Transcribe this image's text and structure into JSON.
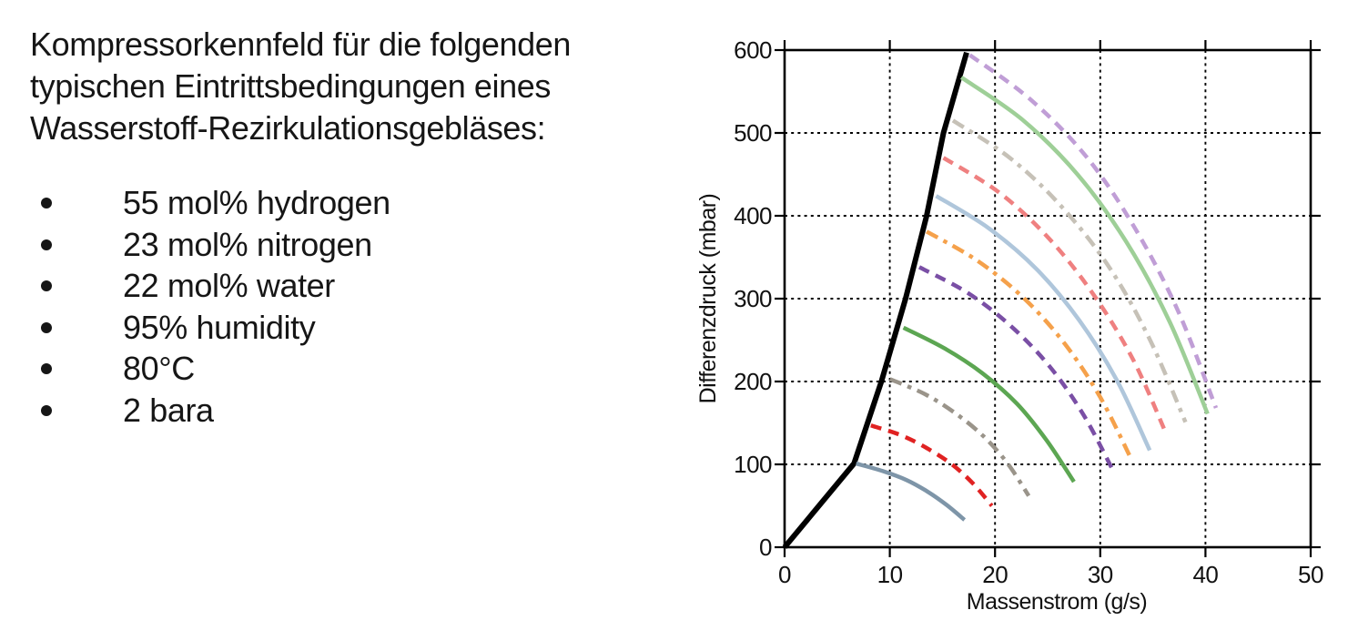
{
  "panel_text": {
    "heading_lines": [
      "Kompressorkennfeld für die folgenden",
      "typischen Eintrittsbedingungen eines",
      "Wasserstoff-Rezirkulationsgebläses:"
    ],
    "bullets": [
      "55 mol% hydrogen",
      "23 mol% nitrogen",
      "22 mol% water",
      "95% humidity",
      "80°C",
      "2 bara"
    ]
  },
  "chart_data": {
    "type": "line",
    "title": "",
    "xlabel": "Massenstrom (g/s)",
    "ylabel": "Differenzdruck (mbar)",
    "xlim": [
      0,
      50
    ],
    "ylim": [
      0,
      600
    ],
    "x_ticks": [
      0,
      10,
      20,
      30,
      40,
      50
    ],
    "y_ticks": [
      0,
      100,
      200,
      300,
      400,
      500,
      600
    ],
    "grid": "black dotted, vertical at 10-40, horizontal at 100-500",
    "legend": "none",
    "series": [
      {
        "name": "surge-limit-line",
        "color": "#000000",
        "style": "solid",
        "width": 6,
        "smooth": false,
        "points": [
          [
            0,
            0
          ],
          [
            6.6,
            101
          ],
          [
            9.2,
            200
          ],
          [
            11.5,
            300
          ],
          [
            13.5,
            400
          ],
          [
            15.1,
            500
          ],
          [
            17.3,
            597
          ]
        ]
      },
      {
        "name": "speedline-1-steelblue-solid",
        "color": "#7e95a8",
        "style": "solid",
        "width": 4.5,
        "points": [
          [
            6.8,
            101
          ],
          [
            9.3,
            92
          ],
          [
            11.6,
            81
          ],
          [
            13.6,
            67
          ],
          [
            15.4,
            51
          ],
          [
            17.1,
            33
          ]
        ]
      },
      {
        "name": "speedline-2-red-dashed",
        "color": "#e02222",
        "style": "dashed",
        "width": 4.5,
        "points": [
          [
            8.2,
            147
          ],
          [
            11.1,
            135
          ],
          [
            13.6,
            119
          ],
          [
            15.9,
            100
          ],
          [
            17.9,
            77
          ],
          [
            19.7,
            50
          ]
        ]
      },
      {
        "name": "speedline-3-gray-dashdot",
        "color": "#9a948a",
        "style": "dashdot",
        "width": 4.5,
        "points": [
          [
            10,
            203
          ],
          [
            13.3,
            185
          ],
          [
            16.2,
            162
          ],
          [
            18.9,
            134
          ],
          [
            21.2,
            101
          ],
          [
            23.2,
            62
          ]
        ]
      },
      {
        "name": "speedline-4-green-solid",
        "color": "#5ca652",
        "style": "solid",
        "width": 4.5,
        "points": [
          [
            11.3,
            265
          ],
          [
            15.2,
            240
          ],
          [
            18.8,
            210
          ],
          [
            22.1,
            173
          ],
          [
            24.9,
            129
          ],
          [
            27.5,
            79
          ]
        ]
      },
      {
        "name": "speedline-5-purple-dashed",
        "color": "#7a4fa5",
        "style": "dashed",
        "width": 4.5,
        "points": [
          [
            12.8,
            338
          ],
          [
            17.4,
            307
          ],
          [
            21.5,
            267
          ],
          [
            25.2,
            218
          ],
          [
            28.4,
            160
          ],
          [
            31.2,
            93
          ]
        ]
      },
      {
        "name": "speedline-6-orange-dashdot",
        "color": "#f5a14b",
        "style": "dashdot",
        "width": 4.5,
        "points": [
          [
            13.5,
            381
          ],
          [
            18.3,
            346
          ],
          [
            22.7,
            301
          ],
          [
            26.6,
            246
          ],
          [
            30,
            181
          ],
          [
            33,
            105
          ]
        ]
      },
      {
        "name": "speedline-7-lightblue-solid",
        "color": "#afc6db",
        "style": "solid",
        "width": 4.5,
        "points": [
          [
            14.4,
            424
          ],
          [
            19.4,
            385
          ],
          [
            24,
            335
          ],
          [
            28,
            274
          ],
          [
            31.6,
            201
          ],
          [
            34.7,
            117
          ]
        ]
      },
      {
        "name": "speedline-8-salmon-dashed",
        "color": "#ef8080",
        "style": "dashed",
        "width": 4.5,
        "points": [
          [
            15.1,
            470
          ],
          [
            20.4,
            428
          ],
          [
            25.1,
            373
          ],
          [
            29.3,
            306
          ],
          [
            33.1,
            227
          ],
          [
            36.3,
            136
          ]
        ]
      },
      {
        "name": "speedline-9-lightgray-dashdot",
        "color": "#c6c1b7",
        "style": "dashdot",
        "width": 4.5,
        "points": [
          [
            16,
            515
          ],
          [
            21.5,
            469
          ],
          [
            26.4,
            410
          ],
          [
            30.9,
            337
          ],
          [
            34.7,
            251
          ],
          [
            38.1,
            151
          ]
        ]
      },
      {
        "name": "speedline-10-lightgreen-solid",
        "color": "#9ecf97",
        "style": "solid",
        "width": 4.5,
        "points": [
          [
            16.8,
            567
          ],
          [
            22.6,
            516
          ],
          [
            27.9,
            449
          ],
          [
            32.5,
            368
          ],
          [
            36.6,
            272
          ],
          [
            40.2,
            161
          ]
        ]
      },
      {
        "name": "speedline-11-plum-dashed",
        "color": "#c09ed6",
        "style": "dashed",
        "width": 4.5,
        "points": [
          [
            17.6,
            594
          ],
          [
            23.4,
            540
          ],
          [
            28.7,
            471
          ],
          [
            33.3,
            385
          ],
          [
            37.4,
            285
          ],
          [
            41,
            168
          ]
        ]
      }
    ]
  }
}
